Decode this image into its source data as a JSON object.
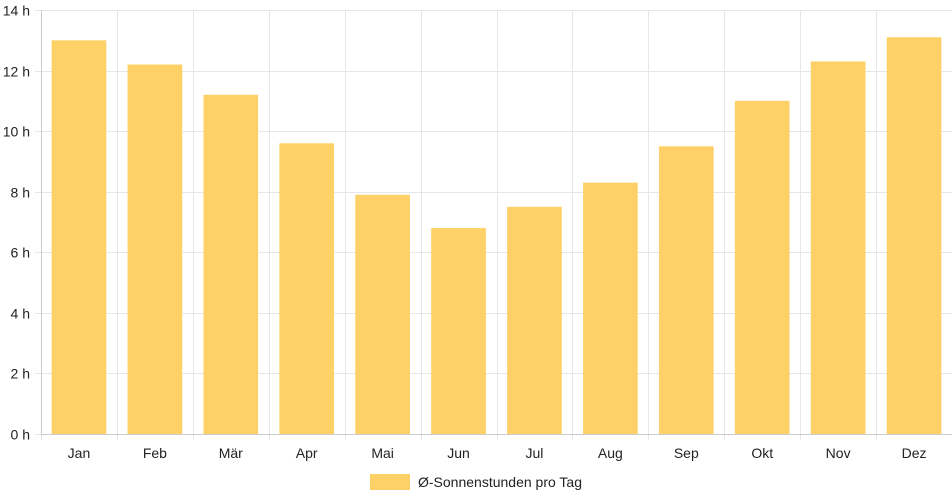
{
  "chart_data": {
    "type": "bar",
    "categories": [
      "Jan",
      "Feb",
      "Mär",
      "Apr",
      "Mai",
      "Jun",
      "Jul",
      "Aug",
      "Sep",
      "Okt",
      "Nov",
      "Dez"
    ],
    "series": [
      {
        "name": "Ø-Sonnenstunden pro Tag",
        "values": [
          13.0,
          12.2,
          11.2,
          9.6,
          7.9,
          6.8,
          7.5,
          8.3,
          9.5,
          11.0,
          12.3,
          13.1
        ]
      }
    ],
    "yticks": [
      "0 h",
      "2 h",
      "4 h",
      "6 h",
      "8 h",
      "10 h",
      "12 h",
      "14 h"
    ],
    "ylim": [
      0,
      14
    ],
    "grid": true,
    "legend_position": "bottom",
    "colors": {
      "bar": "#fdd168",
      "grid": "#e6e6e6",
      "axis": "#cccccc",
      "text": "#222222"
    }
  }
}
